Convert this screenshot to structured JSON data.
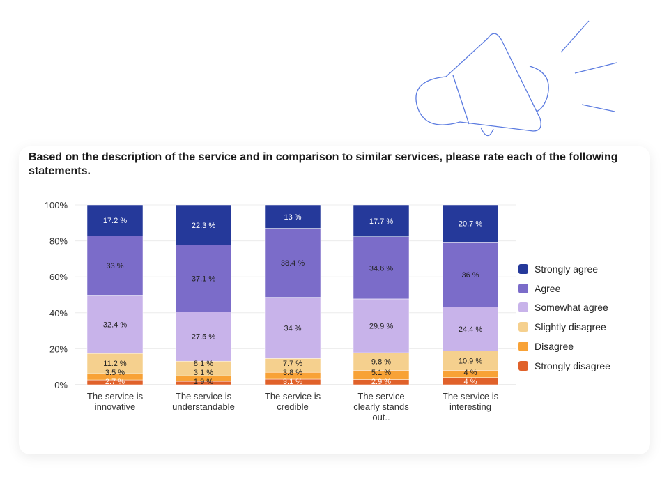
{
  "title": "Based on the description of the service and in comparison to similar services, please rate each of the following statements.",
  "chart_data": {
    "type": "bar",
    "stacked": true,
    "categories": [
      [
        "The service is",
        "innovative"
      ],
      [
        "The service is",
        "understandable"
      ],
      [
        "The service is",
        "credible"
      ],
      [
        "The service",
        "clearly stands",
        "out.."
      ],
      [
        "The service is",
        "interesting"
      ]
    ],
    "series": [
      {
        "name": "Strongly disagree",
        "color": "#e0612a",
        "values": [
          2.7,
          1.9,
          3.1,
          2.9,
          4
        ]
      },
      {
        "name": "Disagree",
        "color": "#f8a236",
        "values": [
          3.5,
          3.1,
          3.8,
          5.1,
          4
        ]
      },
      {
        "name": "Slightly disagree",
        "color": "#f5d08e",
        "values": [
          11.2,
          8.1,
          7.7,
          9.8,
          10.9
        ]
      },
      {
        "name": "Somewhat agree",
        "color": "#c8b3ea",
        "values": [
          32.4,
          27.5,
          34,
          29.9,
          24.4
        ]
      },
      {
        "name": "Agree",
        "color": "#7b6cc9",
        "values": [
          33,
          37.1,
          38.4,
          34.6,
          36
        ]
      },
      {
        "name": "Strongly agree",
        "color": "#25399a",
        "values": [
          17.2,
          22.3,
          13,
          17.7,
          20.7
        ]
      }
    ],
    "yticks": [
      "0%",
      "20%",
      "40%",
      "60%",
      "80%",
      "100%"
    ],
    "ylim": [
      0,
      100
    ],
    "legend_position": "right"
  }
}
